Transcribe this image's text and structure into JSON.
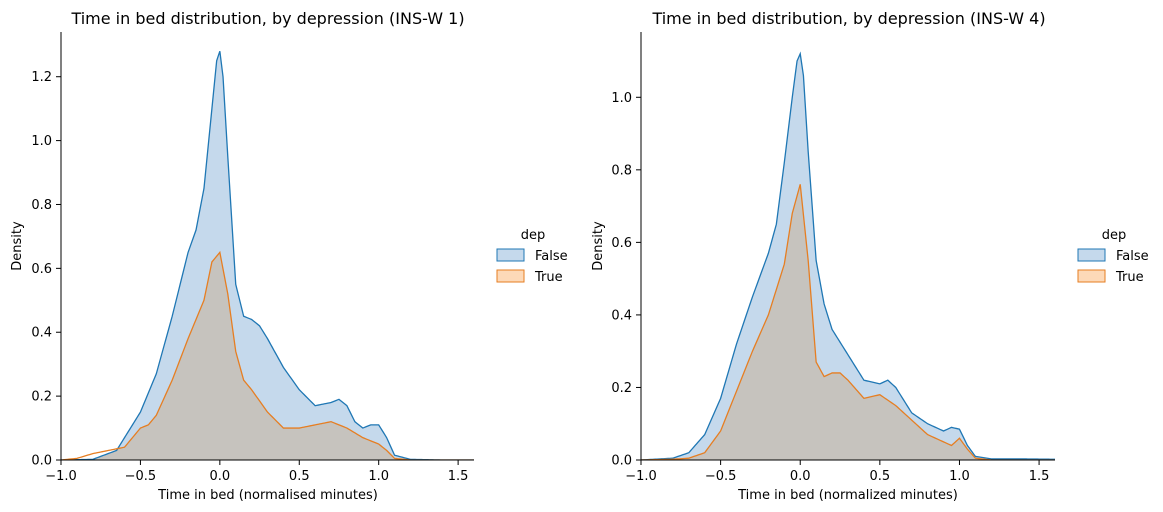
{
  "colors": {
    "false_line": "#1f77b4",
    "false_fill": "#c5d9ec",
    "true_line": "#e67e22",
    "true_fill": "#fdd9b8",
    "overlap_fill": "#c6c3be",
    "axis": "#000000"
  },
  "chart_data": [
    {
      "type": "area",
      "title": "Time in bed distribution, by depression (INS-W 1)",
      "xlabel": "Time in bed (normalised minutes)",
      "ylabel": "Density",
      "xlim": [
        -1.0,
        1.6
      ],
      "ylim": [
        0,
        1.34
      ],
      "xticks": [
        "-1.0",
        "-0.5",
        "0.0",
        "0.5",
        "1.0",
        "1.5"
      ],
      "yticks": [
        "0.0",
        "0.2",
        "0.4",
        "0.6",
        "0.8",
        "1.0",
        "1.2"
      ],
      "grid": false,
      "legend": {
        "title": "dep",
        "placement": "right",
        "entries": [
          "False",
          "True"
        ]
      },
      "series": [
        {
          "name": "False",
          "x": [
            -1.0,
            -0.8,
            -0.65,
            -0.6,
            -0.5,
            -0.4,
            -0.3,
            -0.2,
            -0.15,
            -0.1,
            -0.05,
            -0.02,
            0.0,
            0.02,
            0.05,
            0.1,
            0.15,
            0.2,
            0.25,
            0.3,
            0.4,
            0.5,
            0.6,
            0.7,
            0.75,
            0.8,
            0.85,
            0.9,
            0.95,
            1.0,
            1.05,
            1.1,
            1.2,
            1.4,
            1.6
          ],
          "values": [
            0.0,
            0.002,
            0.03,
            0.07,
            0.15,
            0.27,
            0.45,
            0.65,
            0.72,
            0.85,
            1.1,
            1.25,
            1.28,
            1.2,
            0.95,
            0.55,
            0.45,
            0.44,
            0.42,
            0.38,
            0.29,
            0.22,
            0.17,
            0.18,
            0.19,
            0.17,
            0.12,
            0.1,
            0.11,
            0.11,
            0.07,
            0.015,
            0.002,
            0.0,
            0.0
          ]
        },
        {
          "name": "True",
          "x": [
            -1.0,
            -0.9,
            -0.8,
            -0.7,
            -0.6,
            -0.5,
            -0.45,
            -0.4,
            -0.3,
            -0.2,
            -0.1,
            -0.05,
            0.0,
            0.05,
            0.1,
            0.15,
            0.2,
            0.3,
            0.4,
            0.5,
            0.6,
            0.7,
            0.8,
            0.9,
            1.0,
            1.05,
            1.1,
            1.2,
            1.6
          ],
          "values": [
            0.0,
            0.005,
            0.02,
            0.03,
            0.04,
            0.1,
            0.11,
            0.14,
            0.25,
            0.38,
            0.5,
            0.62,
            0.65,
            0.52,
            0.34,
            0.25,
            0.22,
            0.15,
            0.1,
            0.1,
            0.11,
            0.12,
            0.1,
            0.07,
            0.05,
            0.03,
            0.005,
            0.0,
            0.0
          ]
        }
      ]
    },
    {
      "type": "area",
      "title": "Time in bed distribution, by depression (INS-W 4)",
      "xlabel": "Time in bed (normalized minutes)",
      "ylabel": "Density",
      "xlim": [
        -1.0,
        1.6
      ],
      "ylim": [
        0,
        1.18
      ],
      "xticks": [
        "-1.0",
        "-0.5",
        "0.0",
        "0.5",
        "1.0",
        "1.5"
      ],
      "yticks": [
        "0.0",
        "0.2",
        "0.4",
        "0.6",
        "0.8",
        "1.0"
      ],
      "grid": false,
      "legend": {
        "title": "dep",
        "placement": "right",
        "entries": [
          "False",
          "True"
        ]
      },
      "series": [
        {
          "name": "False",
          "x": [
            -1.0,
            -0.8,
            -0.7,
            -0.6,
            -0.5,
            -0.4,
            -0.3,
            -0.2,
            -0.15,
            -0.1,
            -0.05,
            -0.02,
            0.0,
            0.02,
            0.05,
            0.1,
            0.15,
            0.2,
            0.3,
            0.4,
            0.5,
            0.55,
            0.6,
            0.7,
            0.8,
            0.9,
            0.95,
            1.0,
            1.05,
            1.1,
            1.2,
            1.4,
            1.6
          ],
          "values": [
            0.0,
            0.005,
            0.02,
            0.07,
            0.17,
            0.32,
            0.45,
            0.57,
            0.65,
            0.82,
            1.0,
            1.1,
            1.12,
            1.06,
            0.85,
            0.55,
            0.43,
            0.36,
            0.29,
            0.22,
            0.21,
            0.22,
            0.2,
            0.13,
            0.1,
            0.08,
            0.09,
            0.085,
            0.04,
            0.01,
            0.003,
            0.003,
            0.002
          ]
        },
        {
          "name": "True",
          "x": [
            -1.0,
            -0.8,
            -0.7,
            -0.6,
            -0.5,
            -0.4,
            -0.3,
            -0.2,
            -0.1,
            -0.05,
            0.0,
            0.05,
            0.1,
            0.15,
            0.2,
            0.25,
            0.3,
            0.4,
            0.5,
            0.6,
            0.7,
            0.8,
            0.9,
            0.95,
            1.0,
            1.05,
            1.1,
            1.2,
            1.6
          ],
          "values": [
            0.0,
            0.002,
            0.005,
            0.02,
            0.08,
            0.19,
            0.3,
            0.4,
            0.54,
            0.68,
            0.76,
            0.55,
            0.27,
            0.23,
            0.24,
            0.24,
            0.22,
            0.17,
            0.18,
            0.15,
            0.11,
            0.07,
            0.05,
            0.04,
            0.06,
            0.03,
            0.005,
            0.0,
            0.0
          ]
        }
      ]
    }
  ]
}
